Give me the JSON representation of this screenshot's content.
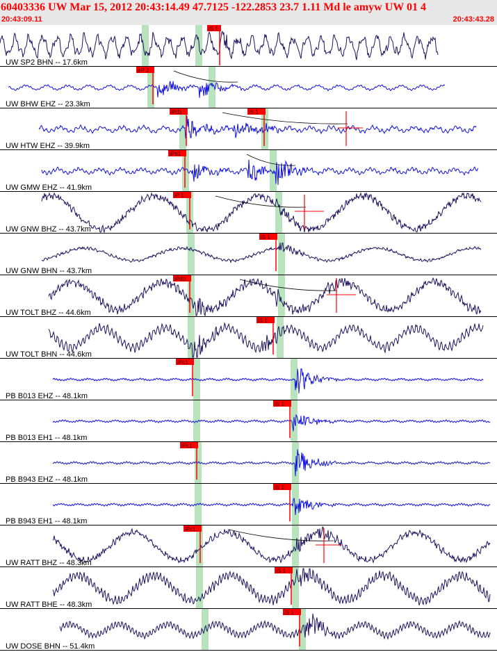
{
  "header": {
    "title": "60403336 UW Mar 15, 2012 20:43:14.49    47.7125 -122.2853 23.7 1.11 Md le amyw UW 01    4",
    "start_time": "20:43:09.11",
    "end_time": "20:43:43.28"
  },
  "colors": {
    "header_text": "#ff0000",
    "header_bg": "#e8e8e8",
    "pick_marker": "#ff0000",
    "pick_window": "#b9e3bd",
    "trace_broadband": "#1c1460",
    "trace_short_period": "#1010dd",
    "label_text": "#000000",
    "divider": "#000000"
  },
  "traces": [
    {
      "label": "UW SP2 BHN -- 17.6km",
      "type": "broadband",
      "picks": [
        {
          "label": "iS 1"
        }
      ]
    },
    {
      "label": "UW BHW EHZ -- 23.3km",
      "type": "short_period",
      "picks": [
        {
          "label": "eP 2"
        }
      ]
    },
    {
      "label": "UW HTW EHZ -- 39.9km",
      "type": "short_period",
      "picks": [
        {
          "label": "iPd1"
        },
        {
          "label": "iS 1"
        }
      ]
    },
    {
      "label": "UW GMW EHZ -- 41.9km",
      "type": "short_period",
      "picks": [
        {
          "label": "iPd1"
        }
      ]
    },
    {
      "label": "UW GNW BHZ -- 43.7km",
      "type": "broadband",
      "picks": [
        {
          "label": "iP 1"
        }
      ]
    },
    {
      "label": "UW GNW BHN -- 43.7km",
      "type": "broadband",
      "picks": [
        {
          "label": "iS 1"
        }
      ]
    },
    {
      "label": "UW TOLT BHZ -- 44.6km",
      "type": "broadband",
      "picks": [
        {
          "label": "iPd0"
        }
      ]
    },
    {
      "label": "UW TOLT BHN -- 44.6km",
      "type": "broadband",
      "picks": [
        {
          "label": "iS 1"
        }
      ]
    },
    {
      "label": "PB B013 EHZ -- 48.1km",
      "type": "short_period",
      "picks": [
        {
          "label": "iPc1"
        }
      ]
    },
    {
      "label": "PB B013 EH1 -- 48.1km",
      "type": "short_period",
      "picks": [
        {
          "label": "iS 1"
        }
      ]
    },
    {
      "label": "PB B943 EHZ -- 48.1km",
      "type": "short_period",
      "picks": [
        {
          "label": "iPc1"
        }
      ]
    },
    {
      "label": "PB B943 EH1 -- 48.1km",
      "type": "short_period",
      "picks": [
        {
          "label": "iS 1"
        }
      ]
    },
    {
      "label": "UW RATT BHZ -- 48.3km",
      "type": "broadband",
      "picks": [
        {
          "label": "iPc1"
        }
      ]
    },
    {
      "label": "UW RATT BHE -- 48.3km",
      "type": "broadband",
      "picks": [
        {
          "label": "iS 1"
        }
      ]
    },
    {
      "label": "UW DOSE BHN -- 51.4km",
      "type": "broadband",
      "picks": [
        {
          "label": "iS 1"
        }
      ]
    }
  ]
}
